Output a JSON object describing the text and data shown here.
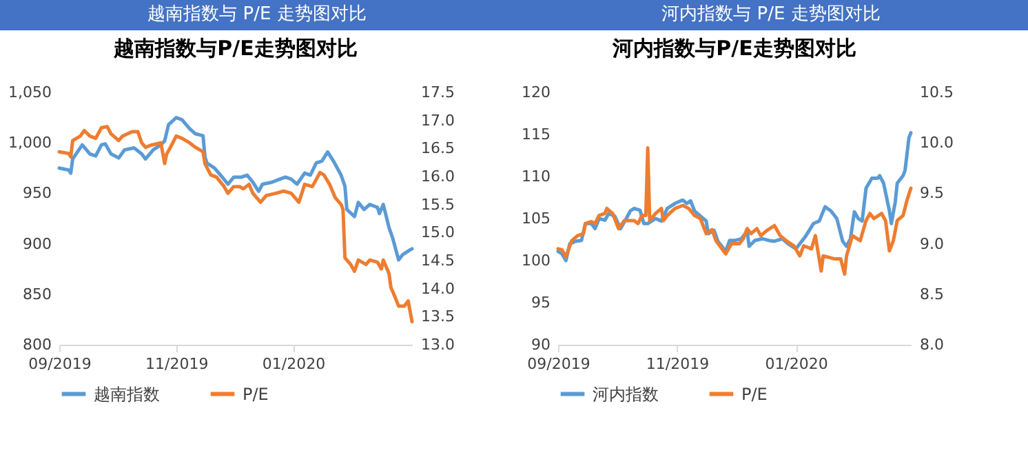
{
  "chart_data": [
    {
      "type": "line",
      "subtitle": "越南指数与 P/E 走势图对比",
      "title": "越南指数与P/E走势图对比",
      "legend": "bottom",
      "grid": false,
      "line_style": "solid",
      "marker": "none",
      "xlim": [
        "2019-09-01",
        "2020-03-03"
      ],
      "xticks": [
        {
          "value": "2019-09-01",
          "label": "09/2019"
        },
        {
          "value": "2019-11-01",
          "label": "11/2019"
        },
        {
          "value": "2020-01-01",
          "label": "01/2020"
        }
      ],
      "ylim": [
        800,
        1050
      ],
      "yticks": [
        800,
        850,
        900,
        950,
        {
          "value": 1000,
          "label": "1,000"
        },
        {
          "value": 1050,
          "label": "1,050"
        }
      ],
      "y2lim": [
        13,
        17.5
      ],
      "y2ticks": [
        {
          "value": 13,
          "label": "13.0"
        },
        13.5,
        {
          "value": 14,
          "label": "14.0"
        },
        14.5,
        {
          "value": 15,
          "label": "15.0"
        },
        15.5,
        {
          "value": 16,
          "label": "16.0"
        },
        16.5,
        {
          "value": 17,
          "label": "17.0"
        },
        17.5
      ],
      "series": [
        {
          "name": "越南指数",
          "color": "#5b9bd5",
          "x": [
            "2019-09-01",
            "2019-09-06",
            "2019-09-07",
            "2019-09-08",
            "2019-09-13",
            "2019-09-17",
            "2019-09-20",
            "2019-09-23",
            "2019-09-25",
            "2019-09-28",
            "2019-10-02",
            "2019-10-05",
            "2019-10-10",
            "2019-10-14",
            "2019-10-16",
            "2019-10-20",
            "2019-10-24",
            "2019-10-26",
            "2019-10-28",
            "2019-11-01",
            "2019-11-04",
            "2019-11-08",
            "2019-11-11",
            "2019-11-15",
            "2019-11-16",
            "2019-11-17",
            "2019-11-21",
            "2019-11-25",
            "2019-11-28",
            "2019-12-01",
            "2019-12-05",
            "2019-12-08",
            "2019-12-11",
            "2019-12-14",
            "2019-12-16",
            "2019-12-21",
            "2019-12-25",
            "2019-12-28",
            "2019-12-31",
            "2020-01-03",
            "2020-01-07",
            "2020-01-10",
            "2020-01-13",
            "2020-01-16",
            "2020-01-19",
            "2020-01-22",
            "2020-01-26",
            "2020-01-28",
            "2020-01-29",
            "2020-02-02",
            "2020-02-04",
            "2020-02-07",
            "2020-02-10",
            "2020-02-14",
            "2020-02-15",
            "2020-02-17",
            "2020-02-20",
            "2020-02-22",
            "2020-02-25",
            "2020-02-27",
            "2020-03-02",
            "2020-03-03"
          ],
          "values": [
            975,
            973,
            970,
            984,
            998,
            989,
            987,
            998,
            999,
            989,
            985,
            993,
            995,
            989,
            984,
            993,
            998,
            1002,
            1018,
            1025,
            1023,
            1014,
            1009,
            1007,
            986,
            980,
            975,
            966,
            959,
            966,
            966,
            968,
            961,
            952,
            959,
            961,
            964,
            966,
            964,
            959,
            970,
            968,
            980,
            982,
            991,
            982,
            968,
            957,
            934,
            927,
            941,
            934,
            939,
            936,
            930,
            939,
            916,
            905,
            884,
            889,
            894,
            895
          ]
        },
        {
          "name": "P/E",
          "color": "#ed7d31",
          "axis": "y2",
          "x": [
            "2019-09-01",
            "2019-09-06",
            "2019-09-07",
            "2019-09-08",
            "2019-09-12",
            "2019-09-14",
            "2019-09-17",
            "2019-09-20",
            "2019-09-23",
            "2019-09-26",
            "2019-09-28",
            "2019-10-02",
            "2019-10-04",
            "2019-10-09",
            "2019-10-12",
            "2019-10-14",
            "2019-10-16",
            "2019-10-19",
            "2019-10-24",
            "2019-10-26",
            "2019-10-27",
            "2019-10-29",
            "2019-11-01",
            "2019-11-04",
            "2019-11-08",
            "2019-11-11",
            "2019-11-15",
            "2019-11-16",
            "2019-11-19",
            "2019-11-22",
            "2019-11-26",
            "2019-11-28",
            "2019-12-01",
            "2019-12-04",
            "2019-12-06",
            "2019-12-09",
            "2019-12-11",
            "2019-12-15",
            "2019-12-18",
            "2019-12-23",
            "2019-12-27",
            "2019-12-31",
            "2020-01-02",
            "2020-01-04",
            "2020-01-07",
            "2020-01-11",
            "2020-01-15",
            "2020-01-17",
            "2020-01-20",
            "2020-01-23",
            "2020-01-26",
            "2020-01-27",
            "2020-01-28",
            "2020-01-31",
            "2020-02-02",
            "2020-02-04",
            "2020-02-08",
            "2020-02-10",
            "2020-02-14",
            "2020-02-16",
            "2020-02-17",
            "2020-02-20",
            "2020-02-21",
            "2020-02-23",
            "2020-02-25",
            "2020-02-28",
            "2020-03-01",
            "2020-03-03"
          ],
          "values": [
            16.44,
            16.41,
            16.35,
            16.64,
            16.72,
            16.82,
            16.72,
            16.68,
            16.87,
            16.89,
            16.76,
            16.64,
            16.72,
            16.8,
            16.8,
            16.6,
            16.52,
            16.56,
            16.6,
            16.23,
            16.4,
            16.52,
            16.72,
            16.68,
            16.6,
            16.52,
            16.44,
            16.23,
            16.03,
            15.99,
            15.82,
            15.7,
            15.82,
            15.82,
            15.78,
            15.86,
            15.7,
            15.54,
            15.66,
            15.7,
            15.74,
            15.7,
            15.62,
            15.54,
            15.86,
            15.82,
            16.07,
            16.03,
            15.86,
            15.62,
            15.5,
            15.41,
            14.55,
            14.43,
            14.31,
            14.51,
            14.43,
            14.51,
            14.47,
            14.35,
            14.51,
            14.27,
            14.02,
            13.86,
            13.69,
            13.69,
            13.78,
            13.41
          ]
        }
      ]
    },
    {
      "type": "line",
      "subtitle": "河内指数与 P/E 走势图对比",
      "title": "河内指数与P/E走势图对比",
      "legend": "bottom",
      "grid": false,
      "line_style": "solid",
      "marker": "none",
      "xlim": [
        "2019-09-01",
        "2020-02-29"
      ],
      "xticks": [
        {
          "value": "2019-09-01",
          "label": "09/2019"
        },
        {
          "value": "2019-11-01",
          "label": "11/2019"
        },
        {
          "value": "2020-01-01",
          "label": "01/2020"
        }
      ],
      "ylim": [
        90,
        120
      ],
      "yticks": [
        90,
        95,
        100,
        105,
        110,
        115,
        120
      ],
      "y2lim": [
        8,
        10.5
      ],
      "y2ticks": [
        {
          "value": 8,
          "label": "8.0"
        },
        8.5,
        {
          "value": 9,
          "label": "9.0"
        },
        9.5,
        {
          "value": 10,
          "label": "10.0"
        },
        10.5
      ],
      "series": [
        {
          "name": "河内指数",
          "color": "#5b9bd5",
          "x": [
            "2019-09-01",
            "2019-09-03",
            "2019-09-05",
            "2019-09-07",
            "2019-09-10",
            "2019-09-13",
            "2019-09-15",
            "2019-09-18",
            "2019-09-20",
            "2019-09-22",
            "2019-09-25",
            "2019-09-27",
            "2019-09-30",
            "2019-10-03",
            "2019-10-06",
            "2019-10-08",
            "2019-10-10",
            "2019-10-13",
            "2019-10-15",
            "2019-10-17",
            "2019-10-21",
            "2019-10-24",
            "2019-10-27",
            "2019-10-31",
            "2019-11-04",
            "2019-11-06",
            "2019-11-08",
            "2019-11-10",
            "2019-11-13",
            "2019-11-16",
            "2019-11-17",
            "2019-11-20",
            "2019-11-22",
            "2019-11-26",
            "2019-11-28",
            "2019-12-01",
            "2019-12-04",
            "2019-12-07",
            "2019-12-08",
            "2019-12-11",
            "2019-12-15",
            "2019-12-18",
            "2019-12-21",
            "2019-12-25",
            "2019-12-28",
            "2020-01-01",
            "2020-01-04",
            "2020-01-06",
            "2020-01-10",
            "2020-01-13",
            "2020-01-16",
            "2020-01-19",
            "2020-01-22",
            "2020-01-25",
            "2020-01-27",
            "2020-01-29",
            "2020-01-31",
            "2020-02-02",
            "2020-02-04",
            "2020-02-06",
            "2020-02-09",
            "2020-02-12",
            "2020-02-13",
            "2020-02-15",
            "2020-02-18",
            "2020-02-19",
            "2020-02-21",
            "2020-02-22",
            "2020-02-25",
            "2020-02-26",
            "2020-02-28",
            "2020-02-29"
          ],
          "values": [
            101.1,
            100.8,
            100,
            102,
            102.3,
            102.4,
            104.4,
            104.4,
            103.8,
            105,
            104.8,
            105.6,
            105.3,
            103.8,
            105,
            105.9,
            106.2,
            106,
            104.4,
            104.4,
            105,
            104.7,
            106.2,
            106.8,
            107.2,
            106.8,
            107.1,
            105.9,
            105.3,
            104.7,
            103.2,
            103.6,
            102.3,
            101.1,
            102.4,
            102.4,
            102.6,
            103.5,
            101.7,
            102.4,
            102.6,
            102.4,
            102.3,
            102.6,
            102,
            101.4,
            102.3,
            102.9,
            104.4,
            104.7,
            106.4,
            105.9,
            105,
            102.3,
            101.7,
            102.6,
            105.8,
            105,
            104.7,
            108.6,
            109.8,
            109.8,
            110.1,
            109.2,
            105.9,
            104.4,
            107,
            109.2,
            110.1,
            110.7,
            114.6,
            115.2
          ]
        },
        {
          "name": "P/E",
          "color": "#ed7d31",
          "axis": "y2",
          "x": [
            "2019-09-01",
            "2019-09-03",
            "2019-09-05",
            "2019-09-08",
            "2019-09-11",
            "2019-09-14",
            "2019-09-15",
            "2019-09-18",
            "2019-09-20",
            "2019-09-22",
            "2019-09-25",
            "2019-09-26",
            "2019-09-29",
            "2019-10-02",
            "2019-10-05",
            "2019-10-07",
            "2019-10-10",
            "2019-10-12",
            "2019-10-14",
            "2019-10-16",
            "2019-10-17",
            "2019-10-18",
            "2019-10-21",
            "2019-10-24",
            "2019-10-25",
            "2019-10-27",
            "2019-10-31",
            "2019-11-04",
            "2019-11-07",
            "2019-11-10",
            "2019-11-13",
            "2019-11-16",
            "2019-11-19",
            "2019-11-21",
            "2019-11-26",
            "2019-11-29",
            "2019-12-03",
            "2019-12-05",
            "2019-12-07",
            "2019-12-09",
            "2019-12-12",
            "2019-12-14",
            "2019-12-17",
            "2019-12-21",
            "2019-12-24",
            "2019-12-27",
            "2019-12-31",
            "2020-01-03",
            "2020-01-05",
            "2020-01-09",
            "2020-01-11",
            "2020-01-14",
            "2020-01-15",
            "2020-01-21",
            "2020-01-24",
            "2020-01-26",
            "2020-01-27",
            "2020-01-30",
            "2020-02-03",
            "2020-02-06",
            "2020-02-08",
            "2020-02-10",
            "2020-02-14",
            "2020-02-16",
            "2020-02-18",
            "2020-02-20",
            "2020-02-22",
            "2020-02-25",
            "2020-02-27",
            "2020-02-29"
          ],
          "values": [
            8.95,
            8.94,
            8.87,
            9.03,
            9.08,
            9.1,
            9.2,
            9.22,
            9.2,
            9.28,
            9.3,
            9.35,
            9.3,
            9.15,
            9.23,
            9.23,
            9.23,
            9.2,
            9.28,
            9.28,
            9.95,
            9.23,
            9.3,
            9.35,
            9.23,
            9.28,
            9.35,
            9.38,
            9.35,
            9.28,
            9.25,
            9.1,
            9.14,
            9.03,
            8.9,
            9,
            9,
            9.05,
            9.15,
            9.1,
            9.15,
            9.08,
            9.13,
            9.18,
            9.08,
            9.03,
            8.98,
            8.88,
            8.98,
            8.95,
            9.08,
            8.73,
            8.88,
            8.85,
            8.85,
            8.7,
            8.88,
            9.08,
            9.03,
            9.23,
            9.3,
            9.25,
            9.3,
            9.23,
            8.93,
            9.03,
            9.23,
            9.28,
            9.43,
            9.55
          ]
        }
      ]
    }
  ]
}
